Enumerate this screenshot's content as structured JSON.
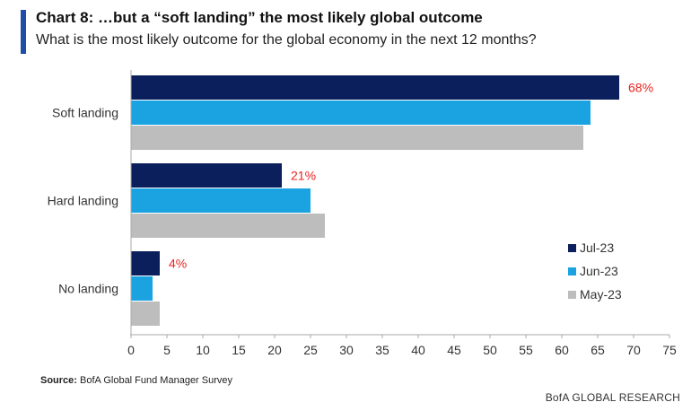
{
  "header": {
    "title": "Chart 8: …but a “soft landing” the most likely global outcome",
    "subtitle": "What is the most likely outcome for the global economy in the next 12 months?",
    "accent_color": "#1f4ea8"
  },
  "footer": {
    "source_label": "Source:",
    "source_text": "BofA Global Fund Manager Survey",
    "brand": "BofA GLOBAL RESEARCH"
  },
  "chart_data": {
    "type": "bar",
    "orientation": "horizontal",
    "categories": [
      "Soft landing",
      "Hard landing",
      "No landing"
    ],
    "series": [
      {
        "name": "Jul-23",
        "values": [
          68,
          21,
          4
        ],
        "color": "#0b1f5c"
      },
      {
        "name": "Jun-23",
        "values": [
          64,
          25,
          3
        ],
        "color": "#1aa3e0"
      },
      {
        "name": "May-23",
        "values": [
          63,
          27,
          4
        ],
        "color": "#bdbdbd"
      }
    ],
    "data_labels": {
      "series": "Jul-23",
      "labels": [
        "68%",
        "21%",
        "4%"
      ],
      "color": "#e8231f"
    },
    "xlim": [
      0,
      75
    ],
    "xticks": [
      0,
      5,
      10,
      15,
      20,
      25,
      30,
      35,
      40,
      45,
      50,
      55,
      60,
      65,
      70,
      75
    ],
    "xlabel": "",
    "ylabel": "",
    "grid": false,
    "legend_position": "right"
  }
}
